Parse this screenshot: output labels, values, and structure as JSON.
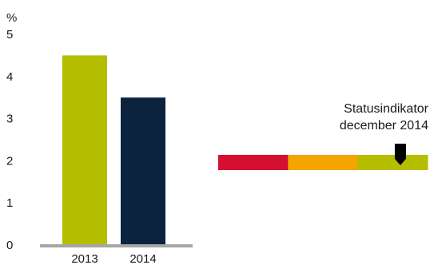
{
  "chart_data": {
    "type": "bar",
    "ylabel": "%",
    "ylim": [
      0,
      5
    ],
    "yticks": [
      "0",
      "1",
      "2",
      "3",
      "4",
      "5"
    ],
    "categories": [
      "2013",
      "2014"
    ],
    "values": [
      4.5,
      3.5
    ],
    "bar_colors": [
      "#b5bd00",
      "#0c2340"
    ],
    "axis_color": "#a6a6a6"
  },
  "status_indicator": {
    "label_line1": "Statusindikator",
    "label_line2": "december 2014",
    "segments": [
      {
        "name": "red",
        "color": "#d50f2f"
      },
      {
        "name": "orange",
        "color": "#f4a500"
      },
      {
        "name": "green",
        "color": "#b5bd00"
      }
    ],
    "pointer_color": "#000000",
    "pointer_value": 0.87
  }
}
